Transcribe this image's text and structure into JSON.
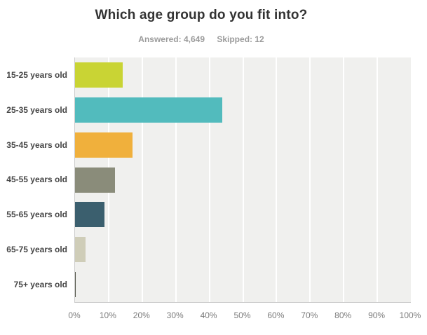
{
  "header": {
    "title": "Which age group do you fit into?",
    "answered_label": "Answered: 4,649",
    "skipped_label": "Skipped: 12"
  },
  "chart_data": {
    "type": "bar",
    "orientation": "horizontal",
    "title": "Which age group do you fit into?",
    "answered": 4649,
    "skipped": 12,
    "categories": [
      "15-25 years old",
      "25-35 years old",
      "35-45 years old",
      "45-55 years old",
      "55-65 years old",
      "65-75 years old",
      "75+ years old"
    ],
    "values": [
      14.3,
      43.8,
      17.2,
      12.0,
      8.7,
      3.2,
      0.3
    ],
    "value_unit": "percent",
    "xlim": [
      0,
      100
    ],
    "xticks": [
      "0%",
      "10%",
      "20%",
      "30%",
      "40%",
      "50%",
      "60%",
      "70%",
      "80%",
      "90%",
      "100%"
    ],
    "grid": "vertical gridlines every 10%",
    "legend": "none",
    "bar_colors": [
      "#C9D434",
      "#52BBBD",
      "#F0B03C",
      "#8A8C7A",
      "#3B5F6E",
      "#CFCDB8",
      "#54564B"
    ],
    "plot_background": "#F0F0EE",
    "gridline_color": "#FFFFFF"
  }
}
